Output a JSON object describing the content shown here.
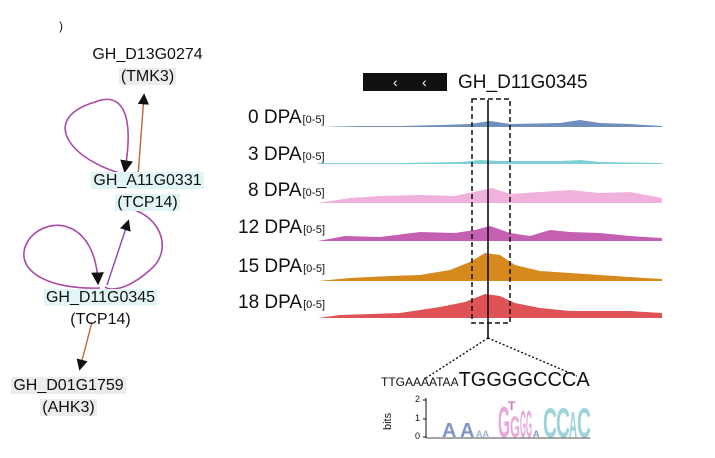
{
  "panel_letter": ")",
  "network": {
    "nodes": [
      {
        "id": "GH_D13G0274",
        "alias": "(TMK3)"
      },
      {
        "id": "GH_A11G0331",
        "alias": "(TCP14)"
      },
      {
        "id": "GH_D11G0345",
        "alias": "(TCP14)"
      },
      {
        "id": "GH_D01G1759",
        "alias": "(AHK3)"
      }
    ],
    "colors": {
      "self_loop": "#a94aa8",
      "regulates": "#c0663b",
      "tcp_edge": "#8e45b8"
    }
  },
  "browser": {
    "gene": "GH_D11G0345",
    "tracks": [
      {
        "label": "0 DPA",
        "range": "[0-5]",
        "color": "#6f8fbf"
      },
      {
        "label": "3 DPA",
        "range": "[0-5]",
        "color": "#7fd0d4"
      },
      {
        "label": "8 DPA",
        "range": "[0-5]",
        "color": "#f0b1dc"
      },
      {
        "label": "12 DPA",
        "range": "[0-5]",
        "color": "#c45fb1"
      },
      {
        "label": "15 DPA",
        "range": "[0-5]",
        "color": "#d68a1e"
      },
      {
        "label": "18 DPA",
        "range": "[0-5]",
        "color": "#df5256"
      }
    ]
  },
  "motif": {
    "seq_small": "TTGAAAATAA",
    "seq_large": "TGGGGCCCA",
    "axis_label": "bits",
    "ticks": [
      "2",
      "1",
      "0"
    ],
    "logo_colors": {
      "g": "#e8a9d9",
      "c": "#9fd3db",
      "t": "#d870c0",
      "a": "#7f95c8"
    }
  }
}
